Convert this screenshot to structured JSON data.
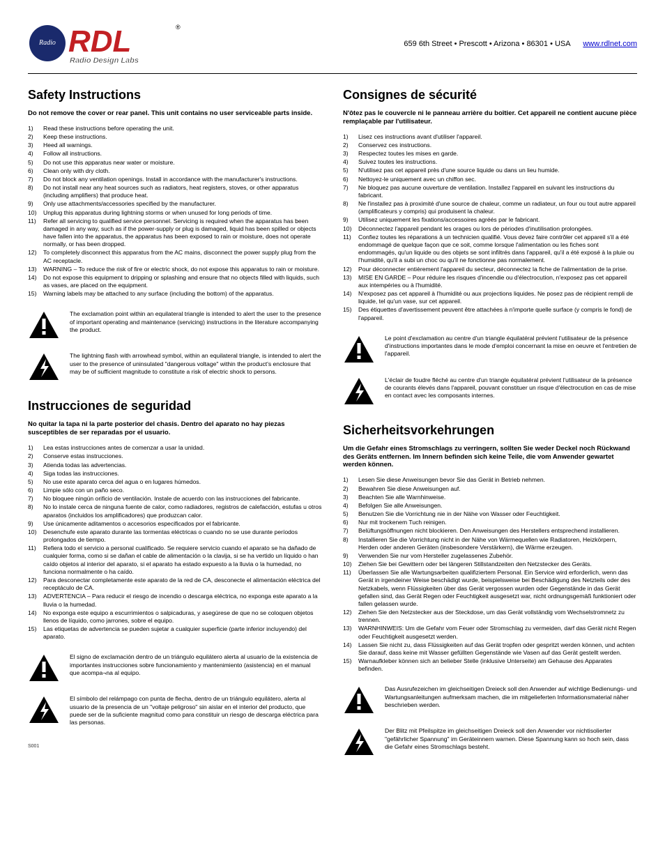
{
  "header": {
    "address": "659 6th Street • Prescott • Arizona • 86301 • USA",
    "link": "www.rdlnet.com",
    "logo_main": "RDL",
    "logo_sub": "Radio Design Labs",
    "logo_red": "#c22024",
    "logo_blue": "#1a2a6c",
    "trademark": "®"
  },
  "sections": {
    "en": {
      "title": "Safety Instructions",
      "warn": "Do not remove the cover or rear panel. This unit contains no user serviceable parts inside.",
      "items": [
        "Read these instructions before operating the unit.",
        "Keep these instructions.",
        "Heed all warnings.",
        "Follow all instructions.",
        "Do not use this apparatus near water or moisture.",
        "Clean only with dry cloth.",
        "Do not block any ventilation openings. Install in accordance with the manufacturer's instructions.",
        "Do not install near any heat sources such as radiators, heat registers, stoves, or other apparatus (including amplifiers) that produce heat.",
        "Only use attachments/accessories specified by the manufacturer.",
        "Unplug this apparatus during lightning storms or when unused for long periods of time.",
        "Refer all servicing to qualified service personnel. Servicing is required when the apparatus has been damaged in any way, such as if the power-supply or plug is damaged, liquid has been spilled or objects have fallen into the apparatus, the apparatus has been exposed to rain or moisture, does not operate normally, or has been dropped.",
        "To completely disconnect this apparatus from the AC mains, disconnect the power supply plug from the AC receptacle.",
        "WARNING – To reduce the risk of fire or electric shock, do not expose this apparatus to rain or moisture.",
        "Do not expose this equipment to dripping or splashing and ensure that no objects filled with liquids, such as vases, are placed on the equipment.",
        "Warning labels may be attached to any surface (including the bottom) of the apparatus."
      ],
      "note1": "The exclamation point within an equilateral triangle is intended to alert the user to the presence of important operating and maintenance (servicing) instructions in the literature accompanying the product.",
      "note2": "The lightning flash with arrowhead symbol, within an equilateral triangle, is intended to alert the user to the presence of uninsulated \"dangerous voltage\" within the product's enclosure that may be of sufficient magnitude to constitute a risk of electric shock to persons."
    },
    "fr": {
      "title": "Consignes de sécurité",
      "warn": "N'ôtez pas le couvercle ni le panneau arrière du boîtier. Cet appareil ne contient aucune pièce remplaçable par l'utilisateur.",
      "items": [
        "Lisez ces instructions avant d'utiliser l'appareil.",
        "Conservez ces instructions.",
        "Respectez toutes les mises en garde.",
        "Suivez toutes les instructions.",
        "N'utilisez pas cet appareil près d'une source liquide ou dans un lieu humide.",
        "Nettoyez-le uniquement avec un chiffon sec.",
        "Ne bloquez pas aucune ouverture de ventilation. Installez l'appareil en suivant les instructions du fabricant.",
        "Ne l'installez pas à proximité d'une source de chaleur, comme un radiateur, un four ou tout autre appareil (amplificateurs y compris) qui produisent la chaleur.",
        "Utilisez uniquement les fixations/accessoires agréés par le fabricant.",
        "Déconnectez l'appareil pendant les orages ou lors de périodes d'inutilisation prolongées.",
        "Confiez toutes les réparations à un technicien qualifié. Vous devez faire contrôler cet appareil s'il a été endommagé de quelque façon que ce soit, comme lorsque l'alimentation ou les fiches sont endommagés, qu'un liquide ou des objets se sont infiltrés dans l'appareil, qu'il a été exposé à la pluie ou l'humidité, qu'il a subi un choc ou qu'il ne fonctionne pas normalement.",
        "Pour déconnecter entièrement l'appareil du secteur, déconnectez la fiche de l'alimentation de la prise.",
        "MISE EN GARDE – Pour réduire les risques d'incendie ou d'électrocution, n'exposez pas cet appareil aux intempéries ou à l'humidité.",
        "N'exposez pas cet appareil à l'humidité ou aux projections liquides. Ne posez pas de récipient rempli de liquide, tel qu'un vase, sur cet appareil.",
        "Des étiquettes d'avertissement peuvent être attachées à n'importe quelle surface (y compris le fond) de l'appareil."
      ],
      "note1": "Le point d'exclamation au centre d'un triangle équilatéral prévient l'utilisateur de la présence d'instructions importantes dans le mode d'emploi concernant la mise en oeuvre et l'entretien de l'appareil.",
      "note2": "L'éclair de foudre fléché au centre d'un triangle équilatéral prévient l'utilisateur de la présence de courants élevés dans l'appareil, pouvant constituer un risque d'électrocution en cas de mise en contact avec les composants internes."
    },
    "es": {
      "title": "Instrucciones de seguridad",
      "warn": "No quitar la tapa ni la parte posterior del chasis. Dentro del aparato no hay piezas susceptibles de ser reparadas por el usuario.",
      "items": [
        "Lea estas instrucciones antes de comenzar a usar la unidad.",
        "Conserve estas instrucciones.",
        "Atienda todas las advertencias.",
        "Siga todas las instrucciones.",
        "No use este aparato cerca del agua o en lugares húmedos.",
        "Limpie sólo con un paño seco.",
        "No bloquee ningún orificio de ventilación. Instale de acuerdo con las instrucciones del fabricante.",
        "No lo instale cerca de ninguna fuente de calor, como radiadores, registros de calefacción, estufas u otros aparatos (incluidos los amplificadores) que produzcan calor.",
        "Use únicamente aditamentos o accesorios especificados por el fabricante.",
        "Desenchufe este aparato durante las tormentas eléctricas o cuando no se use durante períodos prolongados de tiempo.",
        "Refiera todo el servicio a personal cualificado. Se requiere servicio cuando el aparato se ha dañado de cualquier forma, como si se dañan el cable de alimentación o la clavija, si se ha vertido un líquido o han caído objetos al interior del aparato, si el aparato ha estado expuesto a la lluvia o la humedad, no funciona normalmente o ha caído.",
        "Para desconectar completamente este aparato de la red de CA, desconecte el alimentación eléctrica del receptáculo de CA.",
        "ADVERTENCIA – Para reducir el riesgo de incendio o descarga eléctrica, no exponga este aparato a la lluvia o la humedad.",
        "No exponga este equipo a escurrimientos o salpicaduras, y asegúrese de que no se coloquen objetos llenos de líquido, como jarrones, sobre el equipo.",
        "Las etiquetas de advertencia se pueden sujetar a cualquier superficie (parte inferior incluyendo) del aparato."
      ],
      "note1": "El signo de exclamación dentro de un triángulo equilátero alerta al usuario de la existencia de importantes instrucciones sobre funcionamiento y mantenimiento (asistencia) en el manual que acompa¬na al equipo.",
      "note2": "El símbolo del relámpago con punta de flecha, dentro de un triángulo equilátero, alerta al usuario de la presencia de un \"voltaje peligroso\" sin aislar en el interior del producto, que puede ser de la suficiente magnitud como para constituir un riesgo de descarga eléctrica para las personas."
    },
    "de": {
      "title": "Sicherheitsvorkehrungen",
      "warn": "Um die Gefahr eines Stromschlags zu verringern, sollten Sie weder Deckel noch Rückwand des Geräts entfernen. Im Innern befinden sich keine Teile, die vom Anwender gewartet werden können.",
      "items": [
        "Lesen Sie diese Anweisungen bevor Sie das Gerät in Betrieb nehmen.",
        "Bewahren Sie diese Anweisungen auf.",
        "Beachten Sie alle Warnhinweise.",
        "Befolgen Sie alle Anweisungen.",
        "Benutzen Sie die Vorrichtung nie in der Nähe von Wasser oder Feuchtigkeit.",
        "Nur mit trockenem Tuch reinigen.",
        "Belüftungsöffnungen nicht blockieren. Den Anweisungen des Herstellers entsprechend installieren.",
        "Installieren Sie die Vorrichtung nicht in der Nähe von Wärmequellen wie Radiatoren, Heizkörpern, Herden oder anderen Geräten (insbesondere Verstärkern), die Wärme erzeugen.",
        "Verwenden Sie nur vom Hersteller zugelassenes Zubehör.",
        "Ziehen Sie bei Gewittern oder bei längeren Stillstandzeiten den Netzstecker des Geräts.",
        "Überlassen Sie alle Wartungsarbeiten qualifiziertem Personal. Ein Service wird erforderlich, wenn das Gerät in irgendeiner Weise beschädigt wurde, beispielsweise bei Beschädigung des Netzteils oder des Netzkabels, wenn Flüssigkeiten über das Gerät vergossen wurden oder Gegenstände in das Gerät gefallen sind, das Gerät Regen oder Feuchtigkeit ausgesetzt war, nicht ordnungsgemäß funktioniert oder fallen gelassen wurde.",
        "Ziehen Sie den Netzstecker aus der Steckdose, um das Gerät vollständig vom Wechselstromnetz zu trennen.",
        "WARNHINWEIS: Um die Gefahr vom Feuer oder Stromschlag zu vermeiden, darf das Gerät nicht Regen oder Feuchtigkeit ausgesetzt werden.",
        "Lassen Sie nicht zu, dass Flüssigkeiten auf das Gerät tropfen oder gespritzt werden können, und achten Sie darauf, dass keine mit Wasser gefüllten Gegenstände wie Vasen auf das Gerät gestellt werden.",
        "Warnaufkleber können sich an belieber Stelle (inklusive Unterseite) am Gehause des Apparates befinden."
      ],
      "note1": "Das Ausrufezeichen im gleichseitigen Dreieck soll den Anwender auf wichtige Bedienungs- und Wartungsanleitungen aufmerksam machen, die im mitgelieferten Informationsmaterial näher beschrieben werden.",
      "note2": "Der Blitz mit Pfeilspitze im gleichseitigen Dreieck soll den Anwender vor nichtisolierter \"gefährlicher Spannung\" im Geräteinnern warnen. Diese Spannung kann so hoch sein, dass die Gefahr eines Stromschlags besteht."
    }
  },
  "footer_code": "S001",
  "colors": {
    "link": "#0000cc",
    "triangle": "#000000"
  }
}
